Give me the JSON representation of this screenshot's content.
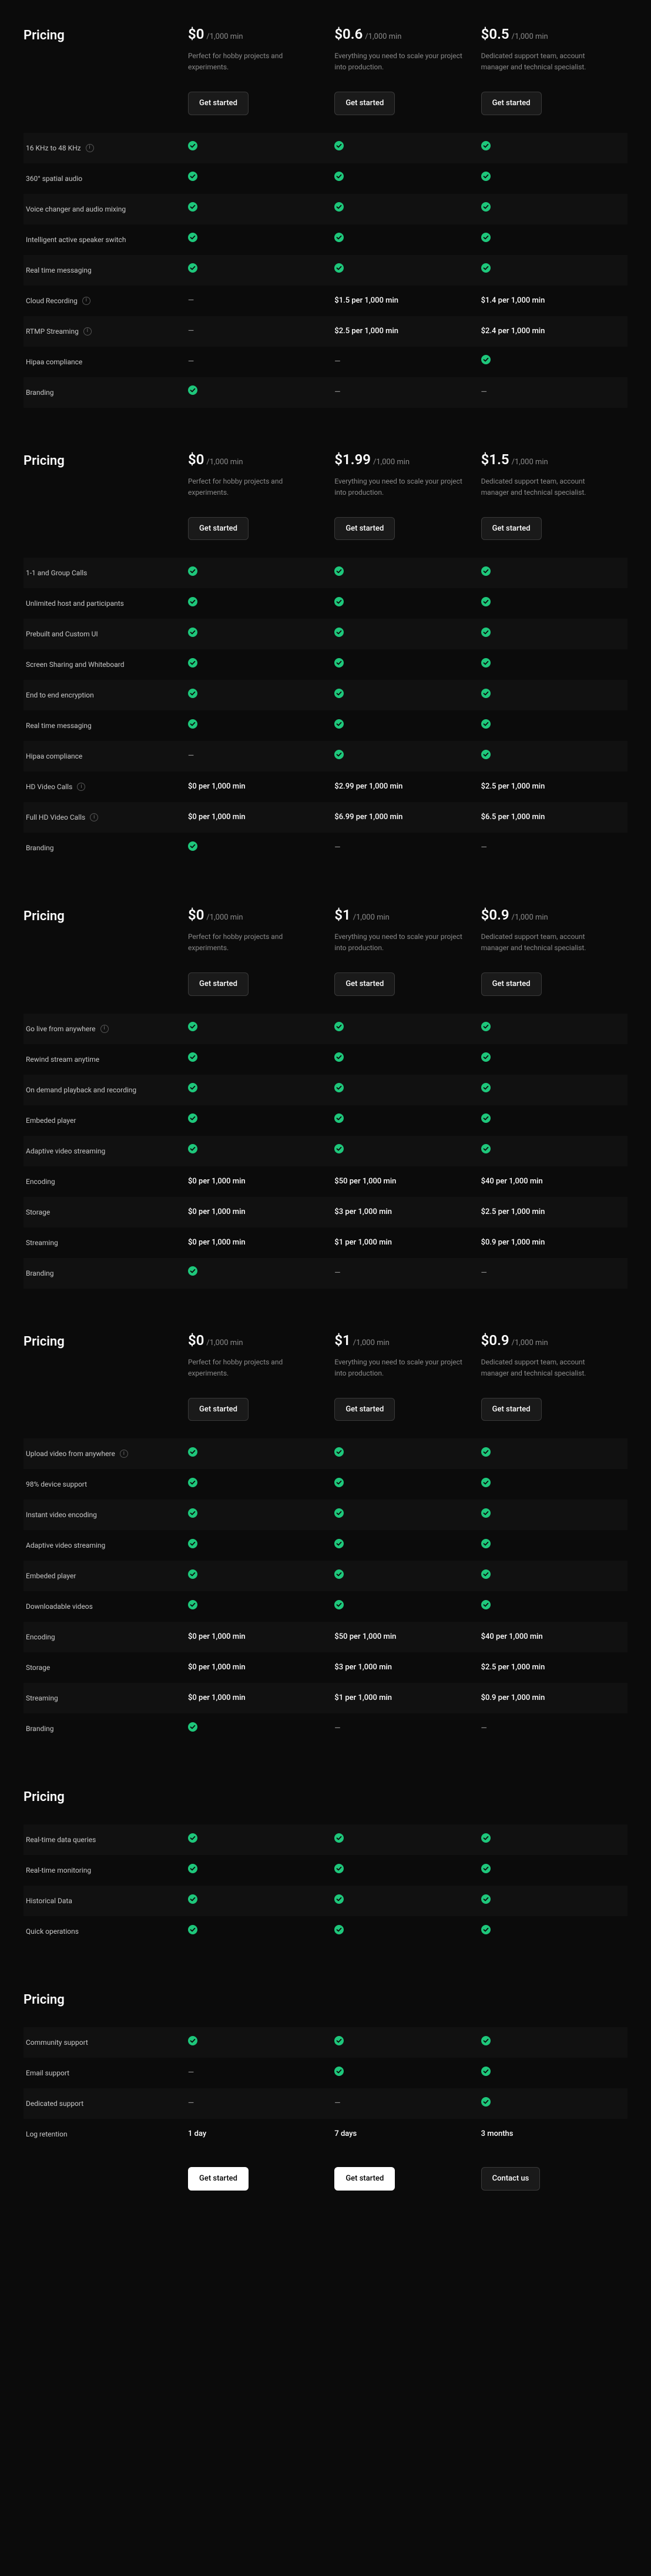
{
  "colors": {
    "bg": "#0b0b0b",
    "row_alt": "#111111",
    "text": "#ffffff",
    "text_dim": "#8a8a8a",
    "green": "#1ec77b",
    "btn_border": "#3a3a3a"
  },
  "plan_descriptions": {
    "free": "Perfect for hobby projects and experiments.",
    "growth": "Everything you need to scale your project into production.",
    "enterprise": "Dedicated support team, account manager and technical specialist."
  },
  "cta": {
    "get_started": "Get started",
    "contact_us": "Contact us"
  },
  "per_unit": "/1,000 min",
  "sections": [
    {
      "title": "Pricing",
      "prices": [
        "$0",
        "$0.6",
        "$0.5"
      ],
      "ctas": [
        "get_started",
        "get_started",
        "get_started"
      ],
      "rows": [
        {
          "label": "16 KHz to 48 KHz",
          "info": true,
          "cells": [
            "check",
            "check",
            "check"
          ]
        },
        {
          "label": "360° spatial audio",
          "cells": [
            "check",
            "check",
            "check"
          ]
        },
        {
          "label": "Voice changer and audio mixing",
          "cells": [
            "check",
            "check",
            "check"
          ]
        },
        {
          "label": "Intelligent active speaker switch",
          "cells": [
            "check",
            "check",
            "check"
          ]
        },
        {
          "label": "Real time messaging",
          "cells": [
            "check",
            "check",
            "check"
          ]
        },
        {
          "label": "Cloud Recording",
          "info": true,
          "cells": [
            "dash",
            "$1.5 per 1,000 min",
            "$1.4 per 1,000 min"
          ]
        },
        {
          "label": "RTMP Streaming",
          "info": true,
          "cells": [
            "dash",
            "$2.5 per 1,000 min",
            "$2.4 per 1,000 min"
          ]
        },
        {
          "label": "Hipaa compliance",
          "cells": [
            "dash",
            "dash",
            "check"
          ]
        },
        {
          "label": "Branding",
          "cells": [
            "check",
            "dash",
            "dash"
          ]
        }
      ]
    },
    {
      "title": "Pricing",
      "prices": [
        "$0",
        "$1.99",
        "$1.5"
      ],
      "ctas": [
        "get_started",
        "get_started",
        "get_started"
      ],
      "rows": [
        {
          "label": "1-1 and Group Calls",
          "cells": [
            "check",
            "check",
            "check"
          ]
        },
        {
          "label": "Unlimited host and participants",
          "cells": [
            "check",
            "check",
            "check"
          ]
        },
        {
          "label": "Prebuilt and Custom UI",
          "cells": [
            "check",
            "check",
            "check"
          ]
        },
        {
          "label": "Screen Sharing and Whiteboard",
          "cells": [
            "check",
            "check",
            "check"
          ]
        },
        {
          "label": "End to end encryption",
          "cells": [
            "check",
            "check",
            "check"
          ]
        },
        {
          "label": "Real time messaging",
          "cells": [
            "check",
            "check",
            "check"
          ]
        },
        {
          "label": "Hipaa compliance",
          "cells": [
            "dash",
            "check",
            "check"
          ]
        },
        {
          "label": "HD Video Calls",
          "info": true,
          "cells": [
            "$0 per 1,000 min",
            "$2.99 per 1,000 min",
            "$2.5 per 1,000 min"
          ]
        },
        {
          "label": "Full HD Video Calls",
          "info": true,
          "cells": [
            "$0 per 1,000 min",
            "$6.99 per 1,000 min",
            "$6.5 per 1,000 min"
          ]
        },
        {
          "label": "Branding",
          "cells": [
            "check",
            "dash",
            "dash"
          ]
        }
      ]
    },
    {
      "title": "Pricing",
      "prices": [
        "$0",
        "$1",
        "$0.9"
      ],
      "ctas": [
        "get_started",
        "get_started",
        "get_started"
      ],
      "rows": [
        {
          "label": "Go live from anywhere",
          "info": true,
          "cells": [
            "check",
            "check",
            "check"
          ]
        },
        {
          "label": "Rewind stream anytime",
          "cells": [
            "check",
            "check",
            "check"
          ]
        },
        {
          "label": "On demand playback and recording",
          "cells": [
            "check",
            "check",
            "check"
          ]
        },
        {
          "label": "Embeded player",
          "cells": [
            "check",
            "check",
            "check"
          ]
        },
        {
          "label": "Adaptive video streaming",
          "cells": [
            "check",
            "check",
            "check"
          ]
        },
        {
          "label": "Encoding",
          "cells": [
            "$0 per 1,000 min",
            "$50 per 1,000 min",
            "$40 per 1,000 min"
          ]
        },
        {
          "label": "Storage",
          "cells": [
            "$0 per 1,000 min",
            "$3 per 1,000 min",
            "$2.5 per 1,000 min"
          ]
        },
        {
          "label": "Streaming",
          "cells": [
            "$0 per 1,000 min",
            "$1 per 1,000 min",
            "$0.9 per 1,000 min"
          ]
        },
        {
          "label": "Branding",
          "cells": [
            "check",
            "dash",
            "dash"
          ]
        }
      ]
    },
    {
      "title": "Pricing",
      "prices": [
        "$0",
        "$1",
        "$0.9"
      ],
      "ctas": [
        "get_started",
        "get_started",
        "get_started"
      ],
      "rows": [
        {
          "label": "Upload video from anywhere",
          "info": true,
          "cells": [
            "check",
            "check",
            "check"
          ]
        },
        {
          "label": "98% device support",
          "cells": [
            "check",
            "check",
            "check"
          ]
        },
        {
          "label": "Instant video encoding",
          "cells": [
            "check",
            "check",
            "check"
          ]
        },
        {
          "label": "Adaptive video streaming",
          "cells": [
            "check",
            "check",
            "check"
          ]
        },
        {
          "label": "Embeded player",
          "cells": [
            "check",
            "check",
            "check"
          ]
        },
        {
          "label": "Downloadable videos",
          "cells": [
            "check",
            "check",
            "check"
          ]
        },
        {
          "label": "Encoding",
          "cells": [
            "$0 per 1,000 min",
            "$50 per 1,000 min",
            "$40 per 1,000 min"
          ]
        },
        {
          "label": "Storage",
          "cells": [
            "$0 per 1,000 min",
            "$3 per 1,000 min",
            "$2.5 per 1,000 min"
          ]
        },
        {
          "label": "Streaming",
          "cells": [
            "$0 per 1,000 min",
            "$1 per 1,000 min",
            "$0.9 per 1,000 min"
          ]
        },
        {
          "label": "Branding",
          "cells": [
            "check",
            "dash",
            "dash"
          ]
        }
      ]
    },
    {
      "title": "Pricing",
      "simple": true,
      "rows": [
        {
          "label": "Real-time data queries",
          "cells": [
            "check",
            "check",
            "check"
          ]
        },
        {
          "label": "Real-time monitoring",
          "cells": [
            "check",
            "check",
            "check"
          ]
        },
        {
          "label": "Historical Data",
          "cells": [
            "check",
            "check",
            "check"
          ]
        },
        {
          "label": "Quick operations",
          "cells": [
            "check",
            "check",
            "check"
          ]
        }
      ]
    },
    {
      "title": "Pricing",
      "simple": true,
      "rows": [
        {
          "label": "Community support",
          "cells": [
            "check",
            "check",
            "check"
          ]
        },
        {
          "label": "Email support",
          "cells": [
            "dash",
            "check",
            "check"
          ]
        },
        {
          "label": "Dedicated support",
          "cells": [
            "dash",
            "dash",
            "check"
          ]
        },
        {
          "label": "Log retention",
          "cells": [
            "1 day",
            "7 days",
            "3 months"
          ]
        }
      ],
      "footer_ctas": [
        "solid",
        "solid",
        "outline"
      ],
      "footer_labels": [
        "get_started",
        "get_started",
        "contact_us"
      ]
    }
  ]
}
